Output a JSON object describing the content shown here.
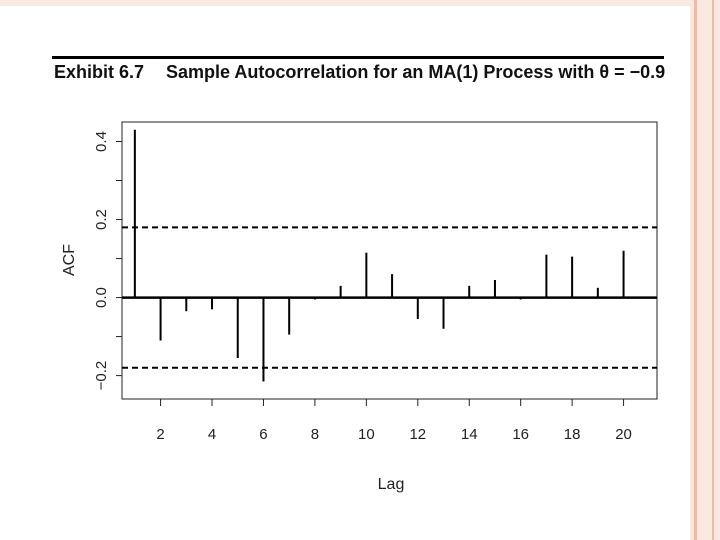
{
  "exhibit": {
    "label": "Exhibit 6.7",
    "title": "Sample Autocorrelation for an MA(1) Process with θ = −0.9"
  },
  "chart_data": {
    "type": "bar",
    "title": "Sample Autocorrelation for an MA(1) Process with θ = −0.9",
    "xlabel": "Lag",
    "ylabel": "ACF",
    "x": [
      1,
      2,
      3,
      4,
      5,
      6,
      7,
      8,
      9,
      10,
      11,
      12,
      13,
      14,
      15,
      16,
      17,
      18,
      19,
      20
    ],
    "values": [
      0.43,
      -0.11,
      -0.035,
      -0.03,
      -0.155,
      -0.215,
      -0.095,
      -0.005,
      0.03,
      0.115,
      0.06,
      -0.055,
      -0.08,
      0.03,
      0.045,
      -0.005,
      0.11,
      0.105,
      0.025,
      0.12
    ],
    "xlim": [
      0.5,
      21.3
    ],
    "ylim": [
      -0.26,
      0.45
    ],
    "xticks": [
      "2",
      "4",
      "6",
      "8",
      "10",
      "12",
      "14",
      "16",
      "18",
      "20"
    ],
    "yticks": [
      "0.4",
      "0.2",
      "0.0",
      "−0.2"
    ],
    "confidence_bound": 0.18,
    "grid": false
  },
  "colors": {
    "bars": "#000000",
    "axes": "#222222",
    "accent_border": "#f2b8a2"
  }
}
